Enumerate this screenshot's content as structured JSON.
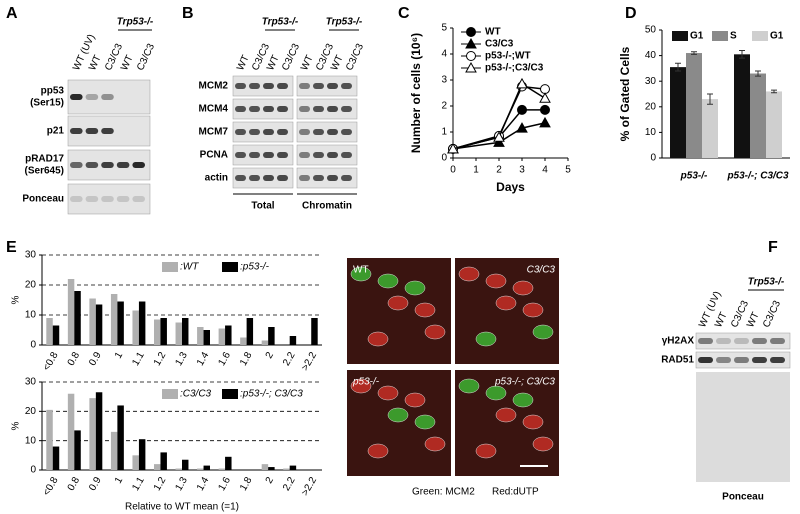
{
  "panel_labels": [
    "A",
    "B",
    "C",
    "D",
    "E",
    "F"
  ],
  "blot_A": {
    "lanes": [
      "WT (UV)",
      "WT",
      "C3/C3",
      "WT",
      "C3/C3"
    ],
    "genotype": "Trp53-/-",
    "rows": [
      [
        "pp53",
        "(Ser15)"
      ],
      [
        "p21"
      ],
      [
        "pRAD17",
        "(Ser645)"
      ],
      [
        "Ponceau"
      ]
    ]
  },
  "blot_B": {
    "lanes": [
      "WT",
      "C3/C3",
      "WT",
      "C3/C3",
      "WT",
      "C3/C3",
      "WT",
      "C3/C3"
    ],
    "genotype": [
      "Trp53-/-",
      "Trp53-/-"
    ],
    "rows": [
      "MCM2",
      "MCM4",
      "MCM7",
      "PCNA",
      "actin"
    ],
    "groups": [
      "Total",
      "Chromatin"
    ]
  },
  "blot_F": {
    "lanes": [
      "WT (UV)",
      "WT",
      "C3/C3",
      "WT",
      "C3/C3"
    ],
    "genotype": "Trp53-/-",
    "rows": [
      "γH2AX",
      "RAD51"
    ],
    "footer": "Ponceau"
  },
  "images": {
    "labels": [
      "WT",
      "C3/C3",
      "p53-/-",
      "p53-/-; C3/C3"
    ],
    "caption": [
      "Green: MCM2",
      "Red:dUTP"
    ]
  },
  "chart_data": [
    {
      "type": "line",
      "x_label": "Days",
      "y_label": "Number of cells (10⁶)",
      "x": [
        0,
        2,
        3,
        4
      ],
      "xlim": [
        0,
        5
      ],
      "xticks": [
        0,
        1,
        2,
        3,
        4,
        5
      ],
      "ylim": [
        0,
        5
      ],
      "yticks": [
        0,
        1,
        2,
        3,
        4,
        5
      ],
      "legend": "upper left",
      "series": [
        {
          "name": "WT",
          "color": "#000000",
          "marker": "circle",
          "filled": true,
          "values": [
            0.35,
            0.8,
            1.85,
            1.85
          ]
        },
        {
          "name": "C3/C3",
          "color": "#000000",
          "marker": "triangle",
          "filled": true,
          "values": [
            0.35,
            0.6,
            1.15,
            1.35
          ]
        },
        {
          "name": "p53-/-;WT",
          "color": "#000000",
          "marker": "circle",
          "filled": false,
          "values": [
            0.35,
            0.85,
            2.75,
            2.65
          ]
        },
        {
          "name": "p53-/-;C3/C3",
          "color": "#000000",
          "marker": "triangle",
          "filled": false,
          "values": [
            0.35,
            0.8,
            2.85,
            2.3
          ]
        }
      ]
    },
    {
      "type": "bar",
      "y_label": "% of Gated Cells",
      "categories": [
        "p53-/-",
        "p53-/-; C3/C3"
      ],
      "ylim": [
        0,
        50
      ],
      "yticks": [
        0,
        10,
        20,
        30,
        40,
        50
      ],
      "legend": "upper center",
      "series": [
        {
          "name": "G1",
          "color": "#111111",
          "values": [
            35.5,
            40.5
          ],
          "errors": [
            1.5,
            1.5
          ]
        },
        {
          "name": "S",
          "color": "#8a8a8a",
          "values": [
            41,
            33
          ],
          "errors": [
            0.5,
            1
          ]
        },
        {
          "name": "G1",
          "color": "#cfcfcf",
          "values": [
            23,
            26
          ],
          "errors": [
            2,
            0.5
          ]
        }
      ]
    },
    {
      "type": "bar",
      "y_label": "%",
      "grid": true,
      "legend": "upper right",
      "categories": [
        "<0.8",
        "0.8",
        "0.9",
        "1",
        "1.1",
        "1.2",
        "1.3",
        "1.4",
        "1.6",
        "1.8",
        "2",
        "2.2",
        ">2.2"
      ],
      "ylim": [
        0,
        30
      ],
      "yticks": [
        0,
        10,
        20,
        30
      ],
      "series": [
        {
          "name": ":WT",
          "color": "#b0b0b0",
          "values": [
            9,
            22,
            15.5,
            17,
            11.5,
            8.5,
            7.5,
            6,
            5.5,
            2.5,
            1.5,
            0,
            0
          ]
        },
        {
          "name": ":p53-/-",
          "color": "#000000",
          "values": [
            6.5,
            18,
            13.5,
            14.5,
            14.5,
            9,
            9,
            5,
            6.5,
            9,
            6,
            3,
            9
          ]
        }
      ]
    },
    {
      "type": "bar",
      "y_label": "%",
      "x_label": "Relative to WT mean (=1)",
      "grid": true,
      "legend": "upper right",
      "categories": [
        "<0.8",
        "0.8",
        "0.9",
        "1",
        "1.1",
        "1.2",
        "1.3",
        "1.4",
        "1.6",
        "1.8",
        "2",
        "2.2",
        ">2.2"
      ],
      "ylim": [
        0,
        30
      ],
      "yticks": [
        0,
        10,
        20,
        30
      ],
      "series": [
        {
          "name": ":C3/C3",
          "color": "#b0b0b0",
          "values": [
            20.5,
            26,
            24.5,
            13,
            5,
            2,
            0.5,
            0.5,
            0.5,
            0,
            2,
            0.5,
            0
          ]
        },
        {
          "name": ":p53-/-; C3/C3",
          "color": "#000000",
          "values": [
            8,
            13.5,
            26.5,
            22,
            10.5,
            6,
            3.5,
            1.5,
            4.5,
            0,
            1,
            1.5,
            0
          ]
        }
      ]
    }
  ]
}
